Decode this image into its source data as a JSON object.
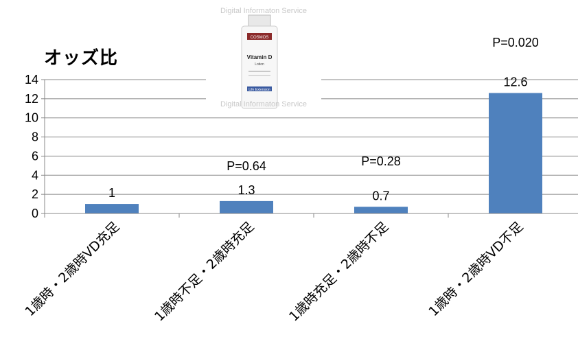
{
  "chart_data": {
    "type": "bar",
    "title": "オッズ比",
    "categories": [
      "1歳時・2歳時VD充足",
      "1歳時不足・2歳時充足",
      "1歳時充足・2歳時不足",
      "1歳時・2歳時VD不足"
    ],
    "values": [
      1,
      1.3,
      0.7,
      12.6
    ],
    "data_labels": [
      "1",
      "1.3",
      "0.7",
      "12.6"
    ],
    "annotations": [
      "",
      "P=0.64",
      "P=0.28",
      "P=0.020"
    ],
    "yticks": [
      "0",
      "2",
      "4",
      "6",
      "8",
      "10",
      "12",
      "14"
    ],
    "ylim": [
      0,
      14
    ],
    "bar_color": "#4f81bd",
    "grid": true,
    "legend": "none"
  },
  "image": {
    "watermark": "Digital Informaton Service",
    "bottle_brand": "COSMOS",
    "bottle_product": "Vitamin D",
    "bottle_sub": "Lotion",
    "bottle_maker": "Life Extension"
  }
}
